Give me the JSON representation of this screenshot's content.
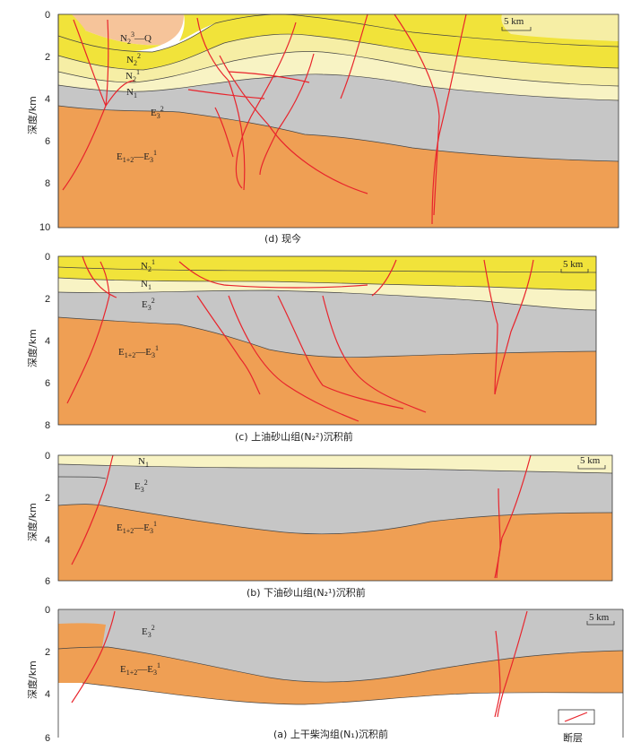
{
  "y_axis_label": "深度/km",
  "scale_label": "5 km",
  "legend_label": "断层",
  "panels": {
    "d": {
      "caption": "(d) 现今",
      "ticks": [
        "0",
        "2",
        "4",
        "6",
        "8",
        "10"
      ],
      "labels": {
        "q": {
          "base": "N",
          "sub": "2",
          "sup": "3",
          "tail": "—Q"
        },
        "n22": {
          "base": "N",
          "sub": "2",
          "sup": "2"
        },
        "n21": {
          "base": "N",
          "sub": "2",
          "sup": "1"
        },
        "n1": {
          "base": "N",
          "sub": "1"
        },
        "e32": {
          "base": "E",
          "sub": "3",
          "sup": "2"
        },
        "e12": {
          "base": "E",
          "sub": "1+2",
          "mid": "—E",
          "sub2": "3",
          "sup": "1"
        }
      }
    },
    "c": {
      "caption": "(c) 上油砂山组(N₂²)沉积前",
      "ticks": [
        "0",
        "2",
        "4",
        "6",
        "8"
      ],
      "labels": {
        "n21": {
          "base": "N",
          "sub": "2",
          "sup": "1"
        },
        "n1": {
          "base": "N",
          "sub": "1"
        },
        "e32": {
          "base": "E",
          "sub": "3",
          "sup": "2"
        },
        "e12": {
          "base": "E",
          "sub": "1+2",
          "mid": "—E",
          "sub2": "3",
          "sup": "1"
        }
      }
    },
    "b": {
      "caption": "(b) 下油砂山组(N₂¹)沉积前",
      "ticks": [
        "0",
        "2",
        "4",
        "6"
      ],
      "labels": {
        "n1": {
          "base": "N",
          "sub": "1"
        },
        "e32": {
          "base": "E",
          "sub": "3",
          "sup": "2"
        },
        "e12": {
          "base": "E",
          "sub": "1+2",
          "mid": "—E",
          "sub2": "3",
          "sup": "1"
        }
      }
    },
    "a": {
      "caption": "(a) 上干柴沟组(N₁)沉积前",
      "ticks": [
        "0",
        "2",
        "4",
        "6"
      ],
      "labels": {
        "e32": {
          "base": "E",
          "sub": "3",
          "sup": "2"
        },
        "e12": {
          "base": "E",
          "sub": "1+2",
          "mid": "—E",
          "sub2": "3",
          "sup": "1"
        }
      }
    }
  },
  "colors": {
    "q": "#f6c49a",
    "n22": "#f1e33a",
    "n21": "#f6eea5",
    "n1": "#f8f3c4",
    "e32": "#c6c6c6",
    "e12": "#ef9f54",
    "fault": "#e8242c"
  }
}
